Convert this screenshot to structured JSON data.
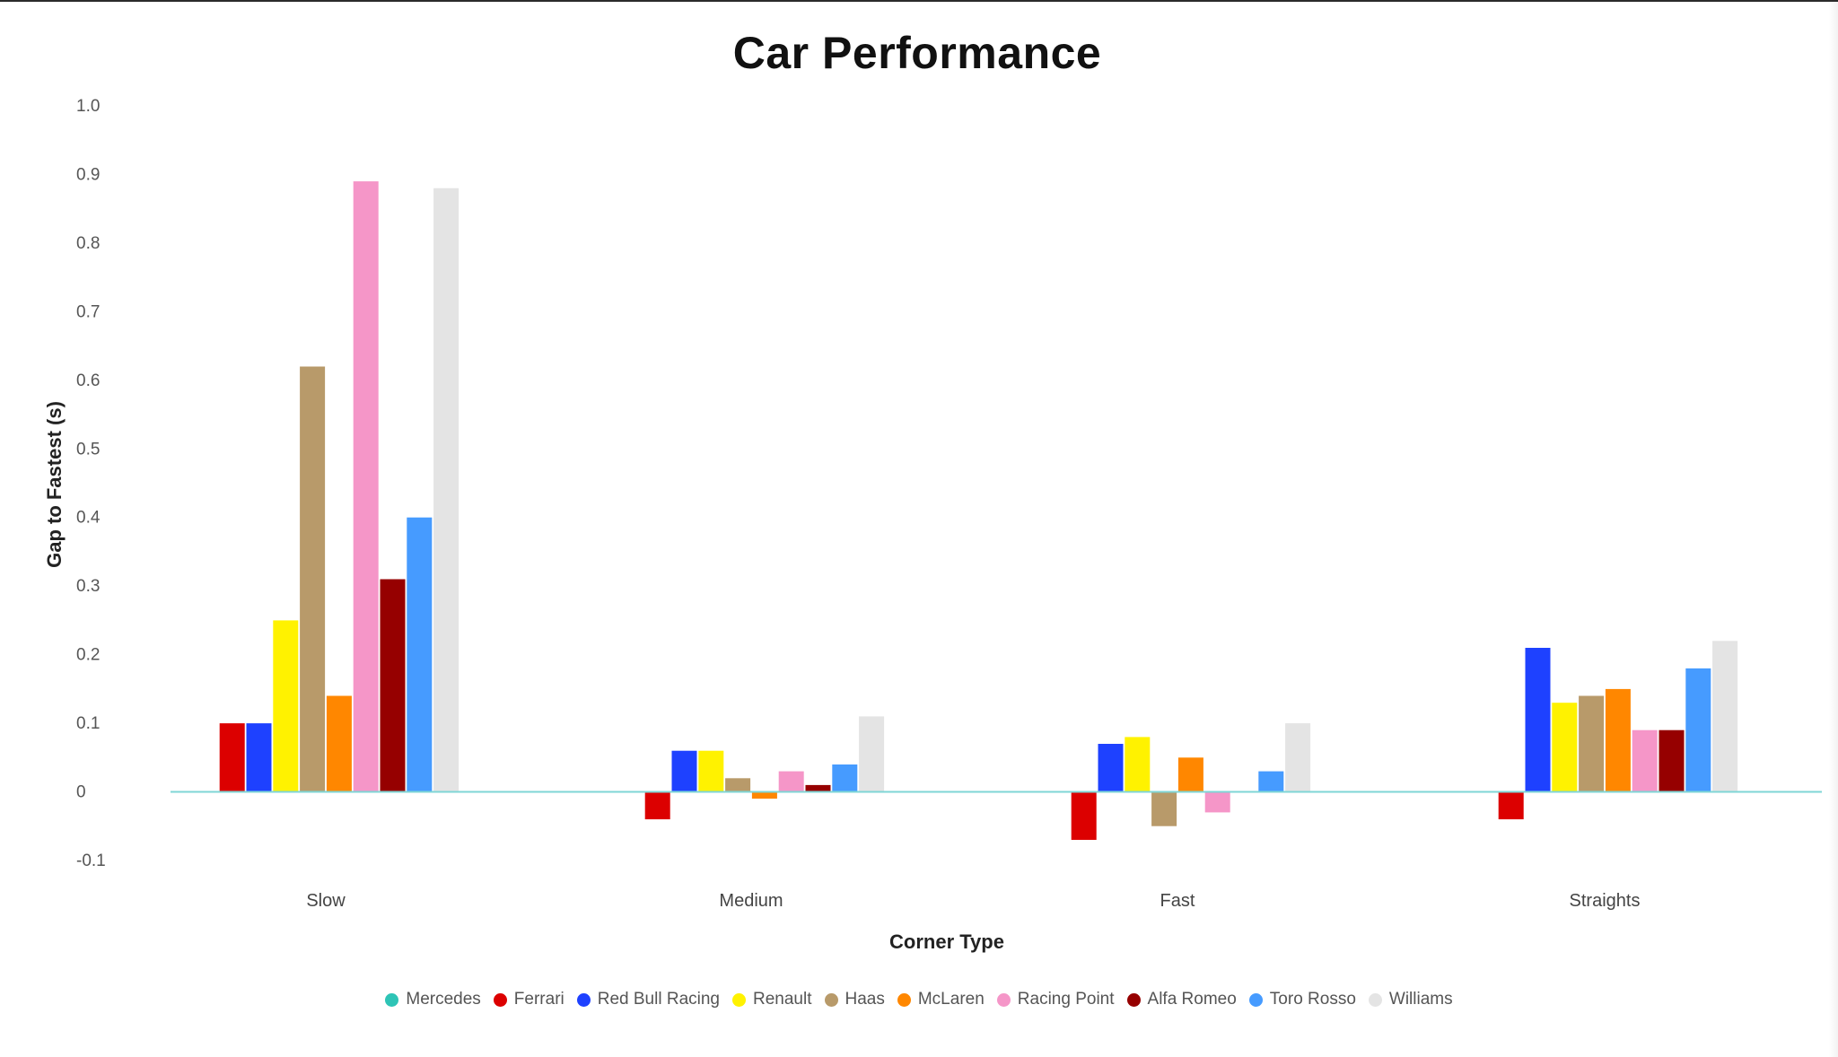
{
  "chart_data": {
    "type": "bar",
    "title": "Car Performance",
    "xlabel": "Corner Type",
    "ylabel": "Gap to Fastest (s)",
    "ylim": [
      -0.1,
      1.0
    ],
    "yticks": [
      1.0,
      0.9,
      0.8,
      0.7,
      0.6,
      0.5,
      0.4,
      0.3,
      0.2,
      0.1,
      0,
      -0.1
    ],
    "ytick_labels": [
      "1.0",
      "0.9",
      "0.8",
      "0.7",
      "0.6",
      "0.5",
      "0.4",
      "0.3",
      "0.2",
      "0.1",
      "0",
      "-0.1"
    ],
    "grid": false,
    "legend_position": "bottom",
    "zero_line_color": "#7fd6d6",
    "categories": [
      "Slow",
      "Medium",
      "Fast",
      "Straights"
    ],
    "series": [
      {
        "name": "Mercedes",
        "color": "#2ec4b6",
        "values": [
          0,
          0,
          0,
          0
        ]
      },
      {
        "name": "Ferrari",
        "color": "#dc0000",
        "values": [
          0.1,
          -0.04,
          -0.07,
          -0.04
        ]
      },
      {
        "name": "Red Bull Racing",
        "color": "#1e41ff",
        "values": [
          0.1,
          0.06,
          0.07,
          0.21
        ]
      },
      {
        "name": "Renault",
        "color": "#fff200",
        "values": [
          0.25,
          0.06,
          0.08,
          0.13
        ]
      },
      {
        "name": "Haas",
        "color": "#b89a6a",
        "values": [
          0.62,
          0.02,
          -0.05,
          0.14
        ]
      },
      {
        "name": "McLaren",
        "color": "#ff8700",
        "values": [
          0.14,
          -0.01,
          0.05,
          0.15
        ]
      },
      {
        "name": "Racing Point",
        "color": "#f596c8",
        "values": [
          0.89,
          0.03,
          -0.03,
          0.09
        ]
      },
      {
        "name": "Alfa Romeo",
        "color": "#960000",
        "values": [
          0.31,
          0.01,
          0,
          0.09
        ]
      },
      {
        "name": "Toro Rosso",
        "color": "#469bff",
        "values": [
          0.4,
          0.04,
          0.03,
          0.18
        ]
      },
      {
        "name": "Williams",
        "color": "#e4e4e4",
        "values": [
          0.88,
          0.11,
          0.1,
          0.22
        ]
      }
    ]
  }
}
